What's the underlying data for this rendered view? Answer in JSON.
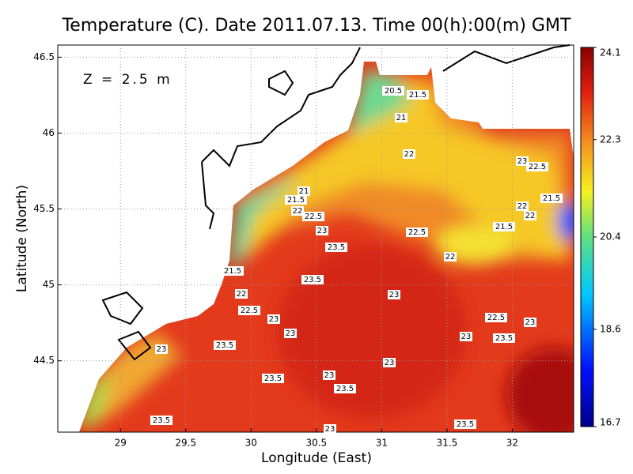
{
  "chart_data": {
    "type": "map",
    "title": "Temperature (C). Date 2011.07.13. Time 00(h):00(m) GMT",
    "annotation": "Z = 2.5 m",
    "x_label": "Longitude (East)",
    "y_label": "Latitude (North)",
    "xlim": [
      28.52,
      32.47
    ],
    "ylim": [
      44.03,
      46.58
    ],
    "xticks": [
      29,
      29.5,
      30,
      30.5,
      31,
      31.5,
      32
    ],
    "yticks": [
      44.5,
      45,
      45.5,
      46,
      46.5
    ],
    "grid": true,
    "clim": [
      16.7,
      24.1
    ],
    "colorbar_ticks": [
      24.1,
      22.3,
      20.4,
      18.6,
      16.7
    ],
    "contour_labels": [
      20.5,
      21.5,
      21,
      22,
      23,
      22.5,
      21,
      21.5,
      22,
      22.5,
      21.5,
      22,
      22,
      21.5,
      23,
      22.5,
      23.5,
      22,
      21.5,
      23.5,
      22,
      23,
      22.5,
      23,
      22.5,
      23,
      23,
      23,
      23.5,
      23,
      23.5,
      23,
      23,
      23.5,
      23.5,
      23.5,
      23.5,
      23
    ]
  }
}
